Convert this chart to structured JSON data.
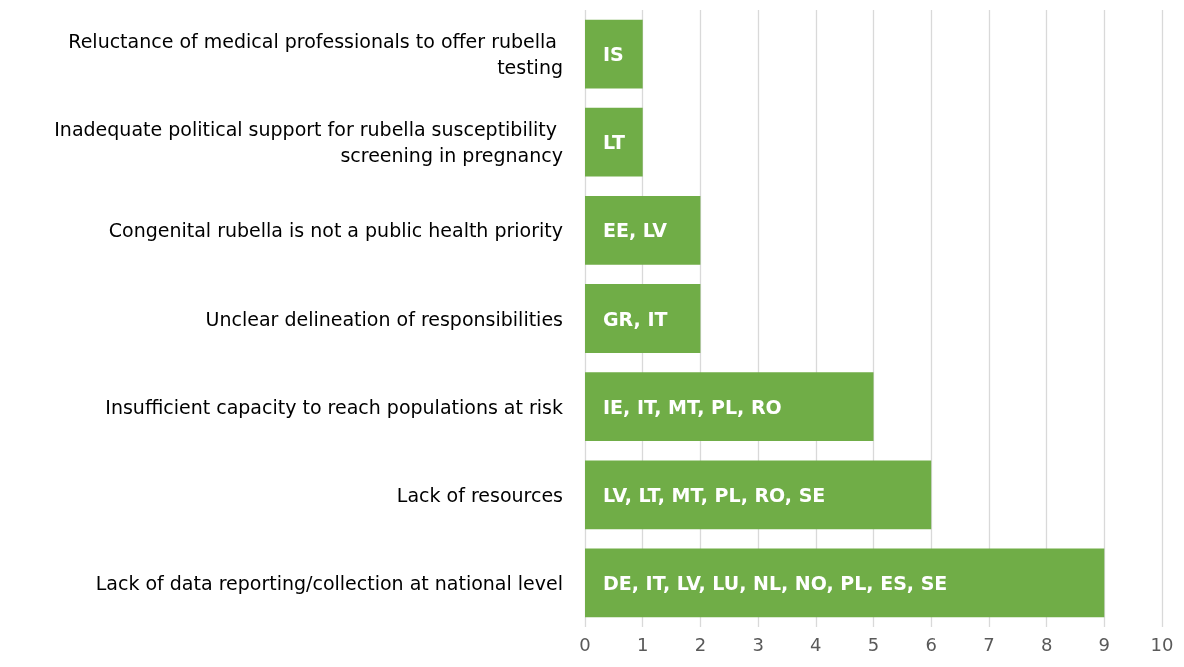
{
  "chart_data": {
    "type": "bar",
    "orientation": "horizontal",
    "categories": [
      "Reluctance of medical professionals to offer rubella testing",
      "Inadequate political support for rubella susceptibility screening in pregnancy",
      "Congenital rubella is not a public health priority",
      "Unclear delineation of responsibilities",
      "Insufficient capacity to reach populations at risk",
      "Lack of resources",
      "Lack of data reporting/collection at national level"
    ],
    "values": [
      1,
      1,
      2,
      2,
      5,
      6,
      9
    ],
    "value_labels": [
      "IS",
      "LT",
      "EE, LV",
      "GR, IT",
      "IE, IT, MT, PL, RO",
      "LV, LT, MT, PL, RO, SE",
      "DE, IT, LV, LU, NL, NO, PL, ES, SE"
    ],
    "color": "#70ad47",
    "xlim": [
      0,
      10
    ],
    "xticks": [
      0,
      1,
      2,
      3,
      4,
      5,
      6,
      7,
      8,
      9,
      10
    ],
    "grid": "x"
  }
}
